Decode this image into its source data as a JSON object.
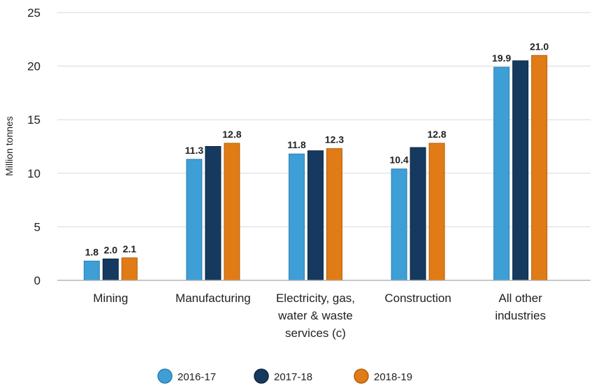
{
  "chart_data": {
    "type": "bar",
    "title": "",
    "ylabel": "Million tonnes",
    "xlabel": "",
    "ylim": [
      0,
      25
    ],
    "yticks": [
      0,
      5,
      10,
      15,
      20,
      25
    ],
    "grid": true,
    "legend_position": "bottom",
    "categories": [
      [
        "Mining"
      ],
      [
        "Manufacturing"
      ],
      [
        "Electricity, gas,",
        "water & waste",
        "services (c)"
      ],
      [
        "Construction"
      ],
      [
        "All other",
        "industries"
      ]
    ],
    "series": [
      {
        "name": "2016-17",
        "color": "#3e9fd6",
        "stroke": "#2a7fb0",
        "values": [
          1.8,
          11.3,
          11.8,
          10.4,
          19.9
        ],
        "labels": [
          "1.8",
          "11.3",
          "11.8",
          "10.4",
          "19.9"
        ]
      },
      {
        "name": "2017-18",
        "color": "#163a5f",
        "stroke": "#0b2440",
        "values": [
          2.0,
          12.5,
          12.1,
          12.4,
          20.5
        ],
        "labels": [
          "2.0",
          "",
          "",
          "",
          ""
        ]
      },
      {
        "name": "2018-19",
        "color": "#e07b16",
        "stroke": "#b35f0c",
        "values": [
          2.1,
          12.8,
          12.3,
          12.8,
          21.0
        ],
        "labels": [
          "2.1",
          "12.8",
          "12.3",
          "12.8",
          "21.0"
        ]
      }
    ]
  }
}
